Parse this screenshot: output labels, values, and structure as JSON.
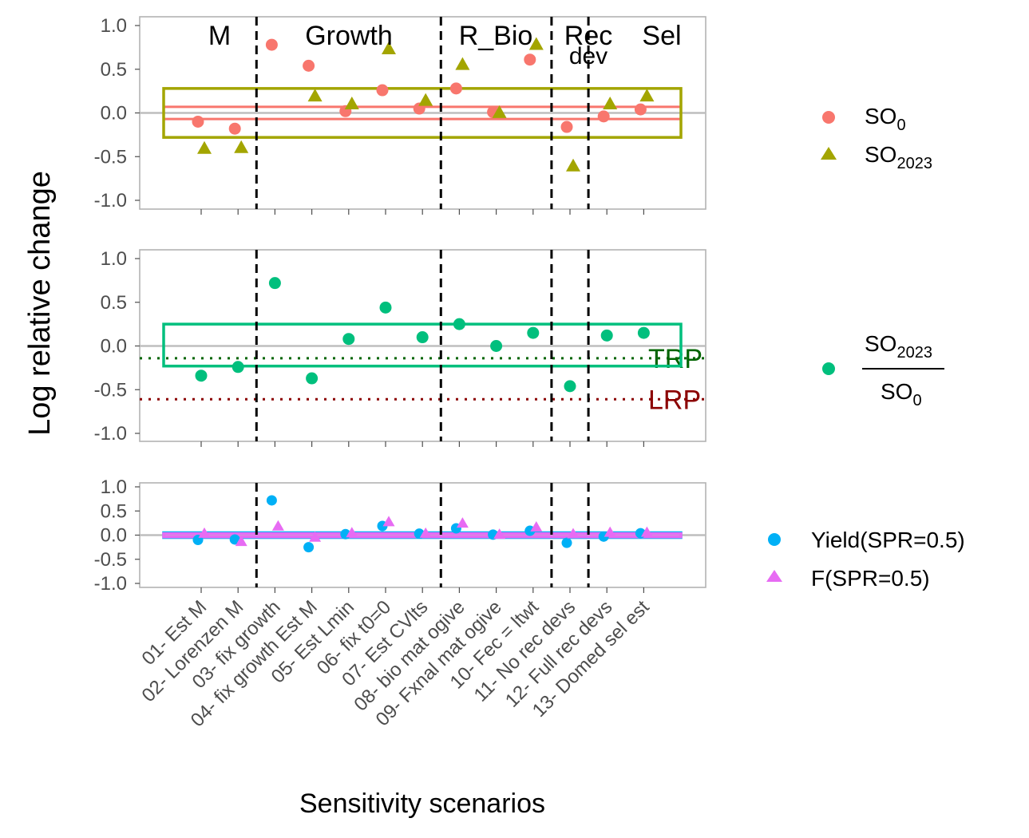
{
  "chart_data": {
    "type": "scatter",
    "title": "",
    "xlabel": "Sensitivity scenarios",
    "ylabel": "Log relative change",
    "categories": [
      "01- Est M",
      "02- Lorenzen M",
      "03- fix growth",
      "04- fix growth Est M",
      "05- Est Lmin",
      "06- fix t0=0",
      "07- Est CVlts",
      "08- bio mat ogive",
      "09- Fxnal mat ogive",
      "10- Fec = ltwt",
      "11- No rec devs",
      "12- Full rec devs",
      "13- Domed sel est"
    ],
    "groups": [
      {
        "label": "M",
        "from": 1,
        "to": 2
      },
      {
        "label": "Growth",
        "from": 3,
        "to": 7
      },
      {
        "label": "R_Bio",
        "from": 8,
        "to": 10
      },
      {
        "label": "Rec\ndev",
        "from": 11,
        "to": 11
      },
      {
        "label": "Sel",
        "from": 12,
        "to": 13
      }
    ],
    "yticks": [
      "1.0",
      "0.5",
      "0.0",
      "-0.5",
      "-1.0"
    ],
    "ylim": [
      -1.0,
      1.0
    ],
    "grid": false,
    "legend_placement": "right",
    "panels": [
      {
        "id": "so",
        "series": [
          {
            "name": "SO0",
            "legend_main": "SO",
            "legend_sub": "0",
            "marker": "circle",
            "color": "#F8766D",
            "values": [
              -0.1,
              -0.18,
              0.78,
              0.54,
              0.02,
              0.26,
              0.05,
              0.28,
              0.01,
              0.61,
              -0.16,
              -0.04,
              0.04
            ],
            "band": [
              -0.07,
              0.07
            ]
          },
          {
            "name": "SO2023",
            "legend_main": "SO",
            "legend_sub": "2023",
            "marker": "triangle",
            "color": "#A3A500",
            "values": [
              -0.41,
              -0.4,
              null,
              0.19,
              0.1,
              0.73,
              0.14,
              0.55,
              0.0,
              0.78,
              -0.61,
              0.1,
              0.19
            ],
            "band": [
              -0.28,
              0.28
            ]
          }
        ]
      },
      {
        "id": "ratio",
        "series": [
          {
            "name": "SO2023/SO0",
            "legend_num_main": "SO",
            "legend_num_sub": "2023",
            "legend_den_main": "SO",
            "legend_den_sub": "0",
            "marker": "circle",
            "color": "#00BF7D",
            "values": [
              -0.34,
              -0.24,
              0.72,
              -0.37,
              0.08,
              0.44,
              0.1,
              0.25,
              0.0,
              0.15,
              -0.46,
              0.12,
              0.15
            ],
            "band": [
              -0.23,
              0.25
            ]
          }
        ],
        "reference_lines": [
          {
            "label": "TRP",
            "value": -0.14,
            "color": "#006400"
          },
          {
            "label": "LRP",
            "value": -0.61,
            "color": "#8B0000"
          }
        ]
      },
      {
        "id": "yield",
        "series": [
          {
            "name": "Yield(SPR=0.5)",
            "marker": "circle",
            "color": "#00B0F6",
            "values": [
              -0.1,
              -0.09,
              0.72,
              -0.25,
              0.02,
              0.19,
              0.03,
              0.14,
              0.01,
              0.09,
              -0.16,
              -0.03,
              0.04
            ],
            "band": [
              -0.05,
              0.05
            ]
          },
          {
            "name": "F(SPR=0.5)",
            "marker": "triangle",
            "color": "#E76BF3",
            "values": [
              0.03,
              -0.14,
              0.18,
              -0.05,
              0.04,
              0.27,
              0.03,
              0.24,
              0.01,
              0.16,
              0.02,
              0.05,
              0.05
            ],
            "band": [
              -0.03,
              0.03
            ]
          }
        ]
      }
    ]
  }
}
